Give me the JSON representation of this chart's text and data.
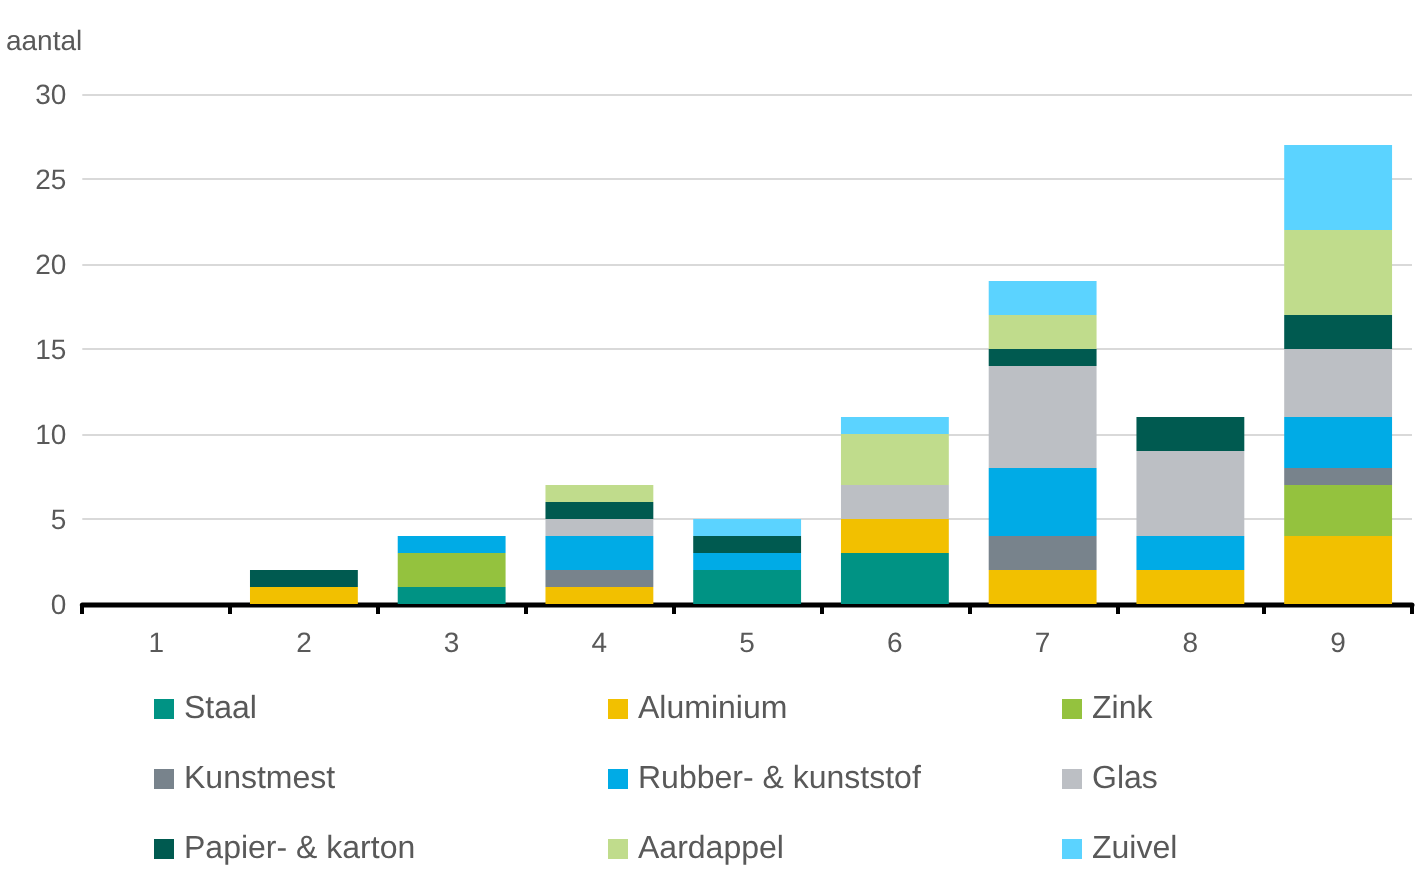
{
  "chart_data": {
    "type": "bar",
    "stacked": true,
    "ylabel": "aantal",
    "categories": [
      "1",
      "2",
      "3",
      "4",
      "5",
      "6",
      "7",
      "8",
      "9"
    ],
    "ylim": [
      0,
      30
    ],
    "yticks": [
      0,
      5,
      10,
      15,
      20,
      25,
      30
    ],
    "grid": "y",
    "legend": "bottom",
    "series": [
      {
        "name": "Staal",
        "color": "#009384",
        "values": [
          0,
          0,
          1,
          0,
          2,
          3,
          0,
          0,
          0
        ]
      },
      {
        "name": "Aluminium",
        "color": "#f2c000",
        "values": [
          0,
          1,
          0,
          1,
          0,
          2,
          2,
          2,
          4
        ]
      },
      {
        "name": "Zink",
        "color": "#94c23e",
        "values": [
          0,
          0,
          2,
          0,
          0,
          0,
          0,
          0,
          3
        ]
      },
      {
        "name": "Kunstmest",
        "color": "#78838c",
        "values": [
          0,
          0,
          0,
          1,
          0,
          0,
          2,
          0,
          1
        ]
      },
      {
        "name": "Rubber- & kunststof",
        "color": "#00abe6",
        "values": [
          0,
          0,
          1,
          2,
          1,
          0,
          4,
          2,
          3
        ]
      },
      {
        "name": "Glas",
        "color": "#bcbfc4",
        "values": [
          0,
          0,
          0,
          1,
          0,
          2,
          6,
          5,
          4
        ]
      },
      {
        "name": "Papier- & karton",
        "color": "#005a50",
        "values": [
          0,
          1,
          0,
          1,
          1,
          0,
          1,
          2,
          2
        ]
      },
      {
        "name": "Aardappel",
        "color": "#c0dc8c",
        "values": [
          0,
          0,
          0,
          1,
          0,
          3,
          2,
          0,
          5
        ]
      },
      {
        "name": "Zuivel",
        "color": "#5bd3ff",
        "values": [
          0,
          0,
          0,
          0,
          1,
          1,
          2,
          0,
          5
        ]
      }
    ]
  }
}
